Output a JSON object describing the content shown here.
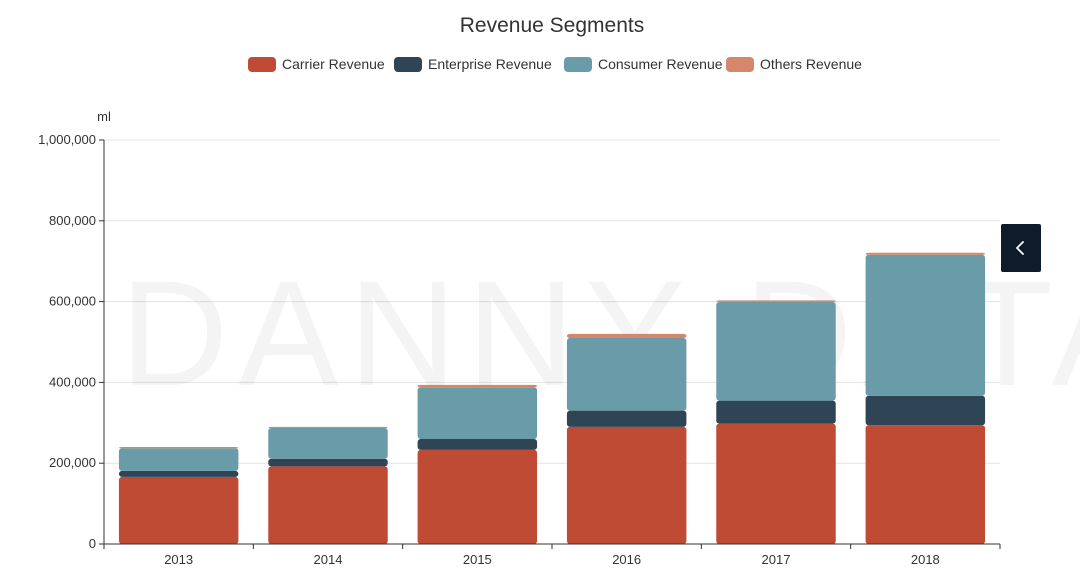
{
  "chart_data": {
    "type": "bar",
    "stacked": true,
    "title": "Revenue Segments",
    "unit_label": "ml",
    "categories": [
      "2013",
      "2014",
      "2015",
      "2016",
      "2017",
      "2018"
    ],
    "series": [
      {
        "name": "Carrier Revenue",
        "color": "#c04b35",
        "values": [
          166000,
          192000,
          233000,
          290000,
          298000,
          294000
        ]
      },
      {
        "name": "Enterprise Revenue",
        "color": "#2f4555",
        "values": [
          15000,
          19000,
          27000,
          40000,
          57000,
          73000
        ]
      },
      {
        "name": "Consumer Revenue",
        "color": "#6a9ba8",
        "values": [
          56000,
          76000,
          128000,
          180000,
          244000,
          349000
        ]
      },
      {
        "name": "Others Revenue",
        "color": "#d4876a",
        "values": [
          3000,
          3000,
          6000,
          10000,
          4000,
          5000
        ]
      }
    ],
    "ylim": [
      0,
      1000000
    ],
    "yticks": [
      0,
      200000,
      400000,
      600000,
      800000,
      1000000
    ],
    "ytick_labels": [
      "0",
      "200,000",
      "400,000",
      "600,000",
      "800,000",
      "1,000,000"
    ],
    "grid": true,
    "legend_position": "top-center"
  },
  "watermark_text": "DANNY DATA",
  "collapse_button": {
    "icon": "chevron-left-icon"
  }
}
